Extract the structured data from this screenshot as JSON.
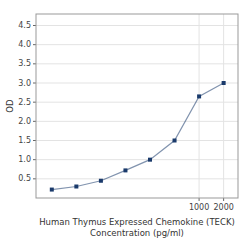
{
  "chart_data": {
    "type": "line",
    "xlabel": [
      "Human Thymus Expressed Chemokine (TECK)",
      "Concentration (pg/ml)"
    ],
    "ylabel": "OD",
    "x": [
      15.625,
      31.25,
      62.5,
      125,
      250,
      500,
      1000,
      2000
    ],
    "values": [
      0.22,
      0.3,
      0.45,
      0.72,
      1.0,
      1.5,
      2.65,
      3.0
    ],
    "color": "#1a3a6b",
    "marker": "square",
    "log": "x",
    "xlim": [
      10,
      3000
    ],
    "xticks": [
      1000,
      2000
    ],
    "ylim": [
      0,
      4.8
    ],
    "yticks": [
      0.5,
      {
        "value": 1.0,
        "label": "1.0"
      },
      1.5,
      {
        "value": 2.0,
        "label": "2.0"
      },
      2.5,
      {
        "value": 3.0,
        "label": "3.0"
      },
      3.5,
      {
        "value": 4.0,
        "label": "4.0"
      },
      4.5
    ],
    "grid": true
  }
}
